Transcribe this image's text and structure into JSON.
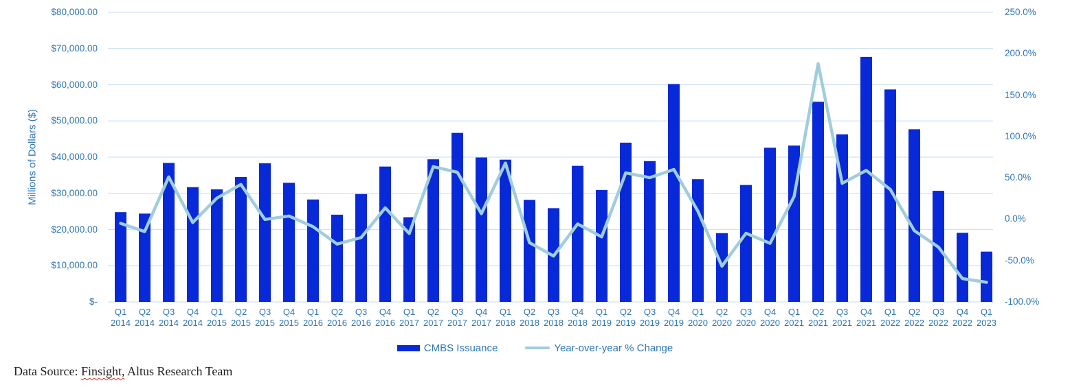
{
  "chart_data": {
    "type": "bar",
    "combo": "bar + line, dual axis",
    "grid": "horizontal",
    "legend_position": "bottom",
    "categories": [
      {
        "quarter": "Q1",
        "year": "2014"
      },
      {
        "quarter": "Q2",
        "year": "2014"
      },
      {
        "quarter": "Q3",
        "year": "2014"
      },
      {
        "quarter": "Q4",
        "year": "2014"
      },
      {
        "quarter": "Q1",
        "year": "2015"
      },
      {
        "quarter": "Q2",
        "year": "2015"
      },
      {
        "quarter": "Q3",
        "year": "2015"
      },
      {
        "quarter": "Q4",
        "year": "2015"
      },
      {
        "quarter": "Q1",
        "year": "2016"
      },
      {
        "quarter": "Q2",
        "year": "2016"
      },
      {
        "quarter": "Q3",
        "year": "2016"
      },
      {
        "quarter": "Q4",
        "year": "2016"
      },
      {
        "quarter": "Q1",
        "year": "2017"
      },
      {
        "quarter": "Q2",
        "year": "2017"
      },
      {
        "quarter": "Q3",
        "year": "2017"
      },
      {
        "quarter": "Q4",
        "year": "2017"
      },
      {
        "quarter": "Q1",
        "year": "2018"
      },
      {
        "quarter": "Q2",
        "year": "2018"
      },
      {
        "quarter": "Q3",
        "year": "2018"
      },
      {
        "quarter": "Q4",
        "year": "2018"
      },
      {
        "quarter": "Q1",
        "year": "2019"
      },
      {
        "quarter": "Q2",
        "year": "2019"
      },
      {
        "quarter": "Q3",
        "year": "2019"
      },
      {
        "quarter": "Q4",
        "year": "2019"
      },
      {
        "quarter": "Q1",
        "year": "2020"
      },
      {
        "quarter": "Q2",
        "year": "2020"
      },
      {
        "quarter": "Q3",
        "year": "2020"
      },
      {
        "quarter": "Q4",
        "year": "2020"
      },
      {
        "quarter": "Q1",
        "year": "2021"
      },
      {
        "quarter": "Q2",
        "year": "2021"
      },
      {
        "quarter": "Q3",
        "year": "2021"
      },
      {
        "quarter": "Q4",
        "year": "2021"
      },
      {
        "quarter": "Q1",
        "year": "2022"
      },
      {
        "quarter": "Q2",
        "year": "2022"
      },
      {
        "quarter": "Q3",
        "year": "2022"
      },
      {
        "quarter": "Q4",
        "year": "2022"
      },
      {
        "quarter": "Q1",
        "year": "2023"
      }
    ],
    "series": [
      {
        "name": "CMBS Issuance",
        "type": "bar",
        "axis": "left",
        "values": [
          24800,
          24400,
          38400,
          31700,
          31100,
          34500,
          38300,
          32900,
          28300,
          24100,
          29800,
          37400,
          23400,
          39400,
          46700,
          39900,
          39300,
          28200,
          25900,
          37600,
          30900,
          44000,
          38900,
          60200,
          33900,
          19000,
          32300,
          42600,
          43200,
          55300,
          46300,
          67700,
          58700,
          47700,
          30700,
          19100,
          13900
        ]
      },
      {
        "name": "Year-over-year % Change",
        "type": "line",
        "axis": "right",
        "values": [
          -5,
          -15,
          51,
          -4,
          25.4,
          42,
          -0.3,
          3.8,
          -9,
          -30.1,
          -22.2,
          13.7,
          -17.3,
          63.5,
          56.7,
          6.7,
          67.9,
          -28.4,
          -44.5,
          -5.8,
          -21.4,
          56,
          50.2,
          60.1,
          9.7,
          -56.8,
          -17,
          -29.2,
          27.4,
          188,
          43.3,
          58.9,
          35.9,
          -13.9,
          -33.7,
          -71.8,
          -76.3
        ]
      }
    ],
    "left_axis": {
      "title": "Millions of Dollars ($)",
      "min": 0,
      "max": 80000,
      "tick_labels": [
        "$80,000.00",
        "$70,000.00",
        "$60,000.00",
        "$50,000.00",
        "$40,000.00",
        "$30,000.00",
        "$20,000.00",
        "$10,000.00",
        "$-"
      ]
    },
    "right_axis": {
      "min": -100,
      "max": 250,
      "tick_labels": [
        "250.0%",
        "200.0%",
        "150.0%",
        "100.0%",
        "50.0%",
        "0.0%",
        "-50.0%",
        "-100.0%"
      ]
    }
  },
  "legend": {
    "items": [
      {
        "label": "CMBS Issuance",
        "swatch": "bar-swatch"
      },
      {
        "label": "Year-over-year % Change",
        "swatch": "line-swatch"
      }
    ]
  },
  "footer": {
    "prefix": "Data Source: ",
    "flagged": "Finsight,",
    "suffix": " Altus Research Team"
  },
  "colors": {
    "bar": "#0829d8",
    "line": "#a0cddb",
    "grid": "#cde3f2",
    "axis_text": "#2e75b6",
    "footer_text": "#1f1f1f",
    "spellcheck_underline": "#d93025"
  }
}
